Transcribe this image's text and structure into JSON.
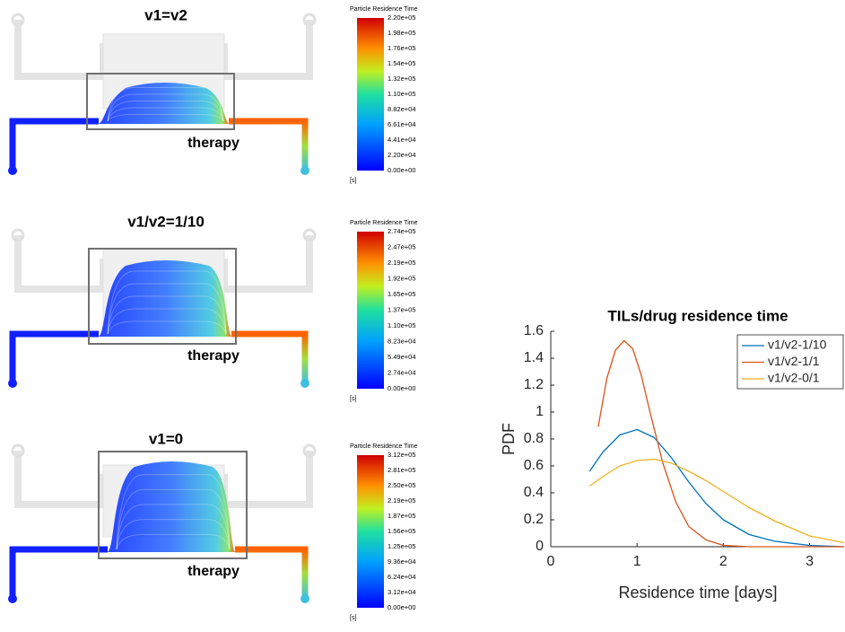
{
  "panels": [
    {
      "title": "v1=v2",
      "annotation": "therapy",
      "colorbar": {
        "title": "Particle Residence Time",
        "unit": "[s]",
        "ticks": [
          "2.20e+05",
          "1.98e+05",
          "1.76e+05",
          "1.54e+05",
          "1.32e+05",
          "1.10e+05",
          "8.82e+04",
          "6.61e+04",
          "4.41e+04",
          "2.20e+04",
          "0.00e+00"
        ]
      }
    },
    {
      "title": "v1/v2=1/10",
      "annotation": "therapy",
      "colorbar": {
        "title": "Particle Residence Time",
        "unit": "[s]",
        "ticks": [
          "2.74e+05",
          "2.47e+05",
          "2.19e+05",
          "1.92e+05",
          "1.65e+05",
          "1.37e+05",
          "1.10e+05",
          "8.23e+04",
          "5.49e+04",
          "2.74e+04",
          "0.00e+00"
        ]
      }
    },
    {
      "title": "v1=0",
      "annotation": "therapy",
      "colorbar": {
        "title": "Particle Residence Time",
        "unit": "[s]",
        "ticks": [
          "3.12e+05",
          "2.81e+05",
          "2.50e+05",
          "2.19e+05",
          "1.87e+05",
          "1.56e+05",
          "1.25e+05",
          "9.36e+04",
          "6.24e+04",
          "3.12e+04",
          "0.00e+00"
        ]
      }
    }
  ],
  "chart_data": {
    "type": "line",
    "title": "TILs/drug residence time",
    "x_label": "Residence time [days]",
    "y_label": "PDF",
    "xlim": [
      0,
      3.4
    ],
    "ylim": [
      0,
      1.6
    ],
    "xticks": [
      0,
      1,
      2,
      3
    ],
    "yticks": [
      0,
      0.2,
      0.4,
      0.6,
      0.8,
      1,
      1.2,
      1.4,
      1.6
    ],
    "legend": "upper right",
    "series": [
      {
        "name": "v1/v2-1/10",
        "color": "#0072bd",
        "x": [
          0.45,
          0.6,
          0.8,
          1.0,
          1.2,
          1.4,
          1.6,
          1.8,
          2.0,
          2.3,
          2.6,
          3.0,
          3.4
        ],
        "values": [
          0.56,
          0.7,
          0.83,
          0.87,
          0.81,
          0.66,
          0.48,
          0.32,
          0.2,
          0.09,
          0.04,
          0.01,
          0
        ]
      },
      {
        "name": "v1/v2-1/1",
        "color": "#d95319",
        "x": [
          0.55,
          0.65,
          0.75,
          0.85,
          0.95,
          1.05,
          1.15,
          1.3,
          1.45,
          1.6,
          1.8,
          2.0,
          2.3,
          2.7,
          3.4
        ],
        "values": [
          0.89,
          1.25,
          1.46,
          1.53,
          1.47,
          1.27,
          1.0,
          0.62,
          0.33,
          0.15,
          0.05,
          0.01,
          0,
          0,
          0
        ]
      },
      {
        "name": "v1/v2-0/1",
        "color": "#edb120",
        "x": [
          0.45,
          0.6,
          0.8,
          1.0,
          1.2,
          1.4,
          1.6,
          1.8,
          2.0,
          2.3,
          2.6,
          3.0,
          3.4
        ],
        "values": [
          0.45,
          0.52,
          0.6,
          0.64,
          0.65,
          0.62,
          0.56,
          0.49,
          0.41,
          0.29,
          0.19,
          0.08,
          0.03
        ]
      }
    ]
  }
}
